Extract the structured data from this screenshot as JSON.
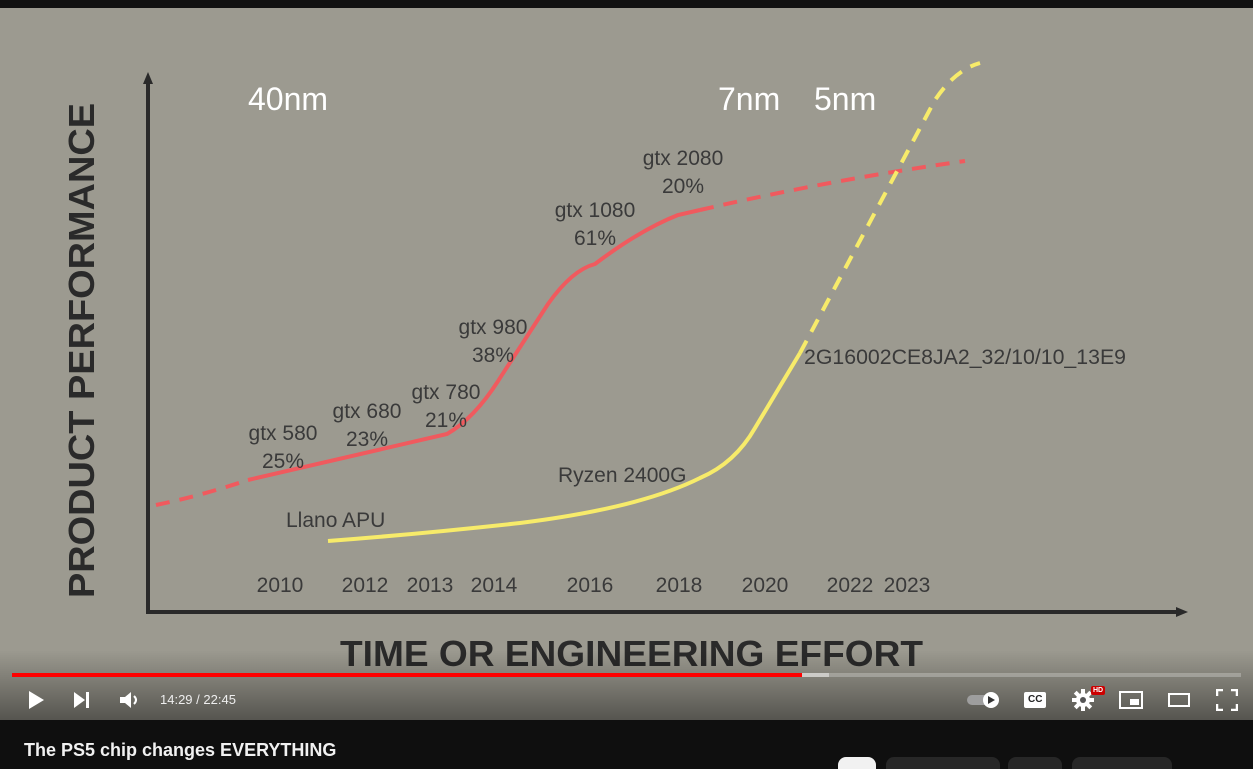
{
  "video": {
    "title": "The PS5 chip changes EVERYTHING",
    "time_current": "14:29",
    "time_total": "22:45",
    "time_separator": " / ",
    "progress_played": 0.643,
    "progress_buffered": 0.665
  },
  "slide": {
    "ylabel": "PRODUCT PERFORMANCE",
    "xlabel": "TIME OR ENGINEERING EFFORT",
    "node_labels": [
      "40nm",
      "7nm",
      "5nm"
    ],
    "years": [
      "2010",
      "2012",
      "2013",
      "2014",
      "2016",
      "2018",
      "2020",
      "2022",
      "2023"
    ],
    "gpu_labels": [
      {
        "name": "gtx 580",
        "pct": "25%"
      },
      {
        "name": "gtx 680",
        "pct": "23%"
      },
      {
        "name": "gtx 780",
        "pct": "21%"
      },
      {
        "name": "gtx 980",
        "pct": "38%"
      },
      {
        "name": "gtx 1080",
        "pct": "61%"
      },
      {
        "name": "gtx 2080",
        "pct": "20%"
      }
    ],
    "apu_labels": [
      "Llano APU",
      "Ryzen 2400G",
      "2G16002CE8JA2_32/10/10_13E9"
    ],
    "colors": {
      "gpu_line": "#f05a5e",
      "apu_line": "#f7eb6a",
      "text": "#ffffff",
      "annot": "#3a3a3a",
      "axis": "#2a2a2a",
      "background": "#9c9a90"
    }
  },
  "controls": {
    "play_icon": "play-icon",
    "next_icon": "next-icon",
    "volume_icon": "volume-icon",
    "autoplay_icon": "autoplay-toggle-icon",
    "cc_label": "CC",
    "settings_icon": "gear-icon",
    "hd_badge": "HD",
    "miniplayer_icon": "miniplayer-icon",
    "theater_icon": "theater-icon",
    "fullscreen_icon": "fullscreen-icon"
  }
}
